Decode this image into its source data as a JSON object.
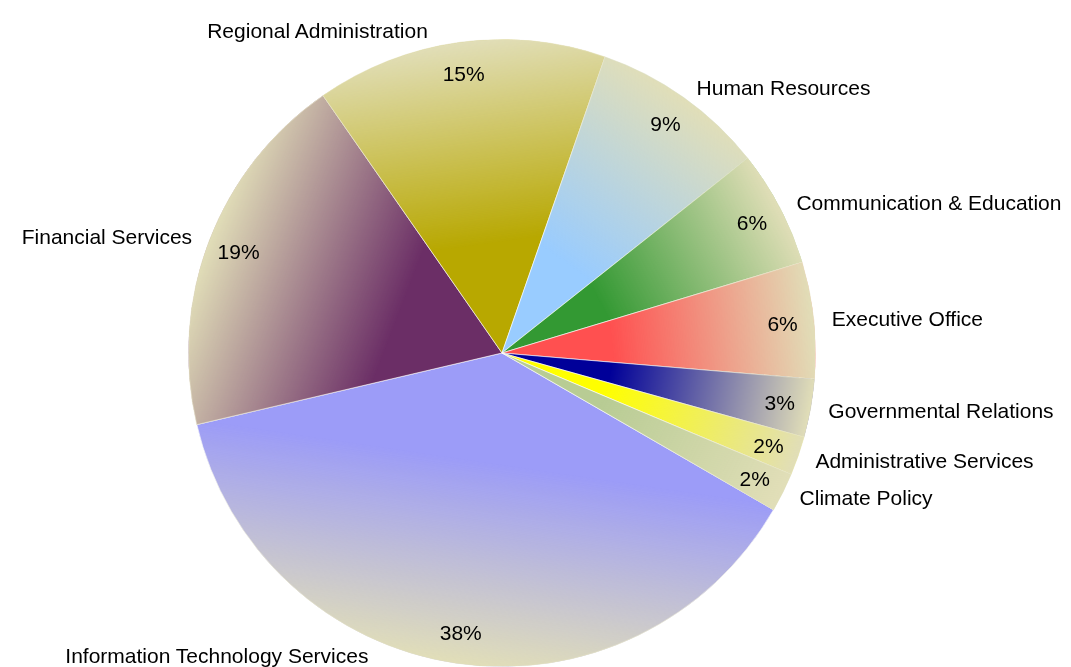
{
  "chart_data": {
    "type": "pie",
    "categories": [
      "Information Technology Services",
      "Financial Services",
      "Regional Administration",
      "Human Resources",
      "Communication & Education",
      "Executive Office",
      "Governmental Relations",
      "Administrative Services",
      "Climate Policy"
    ],
    "values": [
      38,
      19,
      15,
      9,
      6,
      6,
      3,
      2,
      2
    ],
    "value_labels": [
      "38%",
      "19%",
      "15%",
      "9%",
      "6%",
      "6%",
      "3%",
      "2%",
      "2%"
    ],
    "colors": [
      "#9c9cf8",
      "#6b2e66",
      "#b8a800",
      "#99ccff",
      "#339933",
      "#ff5050",
      "#000099",
      "#ffff00",
      "#b8cc94"
    ]
  }
}
